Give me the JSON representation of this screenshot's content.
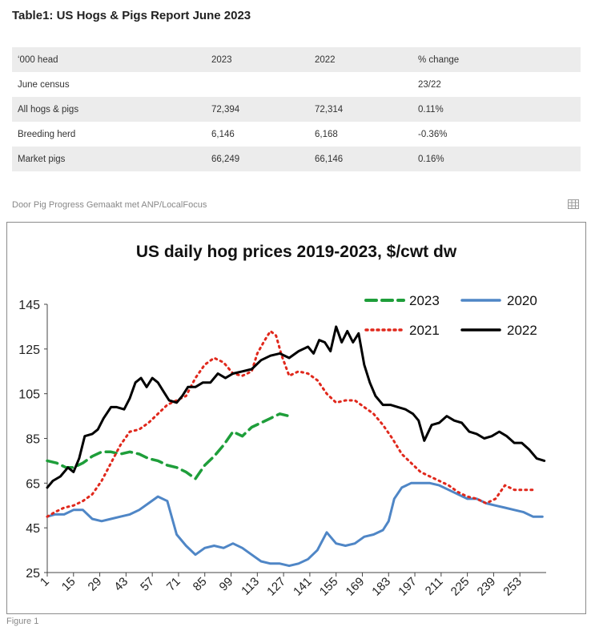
{
  "table": {
    "title": "Table1: US Hogs & Pigs Report June 2023",
    "header": [
      "‘000 head",
      "2023",
      "2022",
      "% change"
    ],
    "rows": [
      [
        "June census",
        "",
        "",
        "23/22"
      ],
      [
        "All hogs & pigs",
        "72,394",
        "72,314",
        "0.11%"
      ],
      [
        "Breeding herd",
        "6,146",
        "6,168",
        "-0.36%"
      ],
      [
        "Market pigs",
        "66,249",
        "66,146",
        "0.16%"
      ]
    ]
  },
  "source_text": "Door Pig Progress  Gemaakt met ANP/LocalFocus",
  "icons": {
    "table_view": "table-grid-icon"
  },
  "caption": "Figure 1",
  "chart_data": {
    "type": "line",
    "title": "US daily hog prices 2019-2023, $/cwt dw",
    "xlabel": "",
    "ylabel": "",
    "xlim": [
      1,
      267
    ],
    "ylim": [
      25,
      145
    ],
    "yticks": [
      25,
      45,
      65,
      85,
      105,
      125,
      145
    ],
    "xticks": [
      1,
      15,
      29,
      43,
      57,
      71,
      85,
      99,
      113,
      127,
      141,
      155,
      169,
      183,
      197,
      211,
      225,
      239,
      253
    ],
    "grid": false,
    "legend": "top-right",
    "series": [
      {
        "name": "2023",
        "color": "#1e9e3a",
        "style": "dashed",
        "x": [
          1,
          6,
          11,
          15,
          20,
          25,
          30,
          35,
          40,
          45,
          50,
          55,
          60,
          65,
          70,
          75,
          80,
          85,
          90,
          95,
          100,
          105,
          110,
          115,
          120,
          125,
          130
        ],
        "y": [
          75,
          74,
          72,
          72,
          74,
          77,
          79,
          79,
          78,
          79,
          78,
          76,
          75,
          73,
          72,
          70,
          67,
          73,
          77,
          82,
          88,
          86,
          90,
          92,
          94,
          96,
          95
        ]
      },
      {
        "name": "2020",
        "color": "#4f86c6",
        "style": "solid",
        "x": [
          1,
          5,
          10,
          15,
          20,
          25,
          30,
          35,
          40,
          45,
          50,
          55,
          60,
          65,
          70,
          75,
          80,
          85,
          90,
          95,
          100,
          105,
          110,
          115,
          120,
          125,
          130,
          135,
          140,
          145,
          150,
          155,
          160,
          165,
          170,
          175,
          180,
          183,
          186,
          190,
          195,
          200,
          205,
          210,
          215,
          220,
          225,
          230,
          235,
          240,
          245,
          250,
          255,
          260,
          265
        ],
        "y": [
          50,
          51,
          51,
          53,
          53,
          49,
          48,
          49,
          50,
          51,
          53,
          56,
          59,
          57,
          42,
          37,
          33,
          36,
          37,
          36,
          38,
          36,
          33,
          30,
          29,
          29,
          28,
          29,
          31,
          35,
          43,
          38,
          37,
          38,
          41,
          42,
          44,
          48,
          58,
          63,
          65,
          65,
          65,
          64,
          62,
          60,
          58,
          58,
          56,
          55,
          54,
          53,
          52,
          50,
          50
        ]
      },
      {
        "name": "2021",
        "color": "#e0281c",
        "style": "dotted",
        "x": [
          1,
          5,
          10,
          15,
          20,
          25,
          30,
          35,
          40,
          45,
          50,
          55,
          60,
          65,
          70,
          75,
          80,
          85,
          90,
          95,
          100,
          105,
          110,
          113,
          117,
          120,
          123,
          126,
          130,
          135,
          140,
          145,
          150,
          155,
          160,
          165,
          170,
          175,
          180,
          185,
          190,
          195,
          200,
          205,
          210,
          215,
          220,
          225,
          230,
          235,
          240,
          245,
          250,
          255,
          260
        ],
        "y": [
          50,
          52,
          54,
          55,
          57,
          60,
          66,
          74,
          82,
          88,
          89,
          92,
          96,
          100,
          102,
          104,
          112,
          118,
          121,
          119,
          114,
          113,
          115,
          123,
          129,
          133,
          131,
          122,
          113,
          115,
          114,
          111,
          105,
          101,
          102,
          102,
          99,
          96,
          91,
          85,
          78,
          74,
          70,
          68,
          66,
          64,
          61,
          59,
          58,
          56,
          58,
          64,
          62,
          62,
          62
        ]
      },
      {
        "name": "2022",
        "color": "#000000",
        "style": "solid",
        "x": [
          1,
          4,
          8,
          12,
          15,
          18,
          21,
          25,
          28,
          31,
          35,
          38,
          42,
          45,
          48,
          51,
          54,
          57,
          60,
          63,
          66,
          70,
          73,
          76,
          80,
          84,
          88,
          92,
          96,
          100,
          105,
          110,
          115,
          120,
          125,
          130,
          135,
          140,
          143,
          146,
          149,
          152,
          155,
          158,
          161,
          164,
          167,
          170,
          173,
          176,
          180,
          184,
          188,
          192,
          196,
          199,
          202,
          206,
          210,
          214,
          218,
          222,
          226,
          230,
          234,
          238,
          242,
          246,
          250,
          254,
          258,
          262,
          266
        ],
        "y": [
          63,
          66,
          68,
          72,
          70,
          76,
          86,
          87,
          89,
          94,
          99,
          99,
          98,
          103,
          110,
          112,
          108,
          112,
          110,
          106,
          102,
          101,
          104,
          108,
          108,
          110,
          110,
          114,
          112,
          114,
          115,
          116,
          120,
          122,
          123,
          121,
          124,
          126,
          123,
          129,
          128,
          124,
          135,
          128,
          133,
          128,
          132,
          118,
          110,
          104,
          100,
          100,
          99,
          98,
          96,
          93,
          84,
          91,
          92,
          95,
          93,
          92,
          88,
          87,
          85,
          86,
          88,
          86,
          83,
          83,
          80,
          76,
          75
        ]
      }
    ]
  }
}
